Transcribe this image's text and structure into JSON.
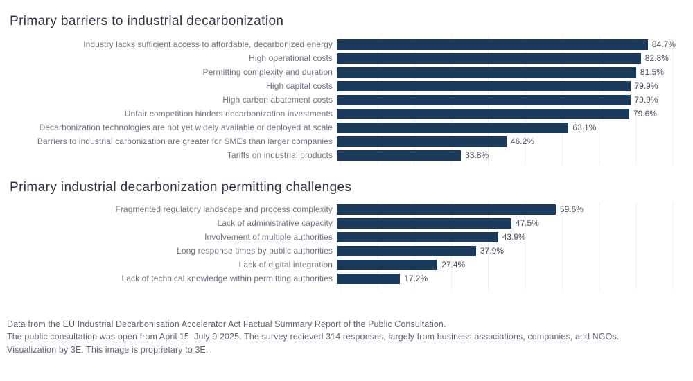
{
  "page": {
    "background": "#ffffff",
    "bar_color": "#1b3a5c",
    "gridline_color": "#ececf0",
    "title_color": "#2e3444",
    "label_color": "#6b7280",
    "value_color": "#454d5c",
    "footer_color": "#5e6573"
  },
  "chart_data": [
    {
      "type": "bar",
      "orientation": "horizontal",
      "title": "Primary barriers to industrial decarbonization",
      "categories": [
        "Industry lacks sufficient access to affordable, decarbonized energy",
        "High operational costs",
        "Permitting complexity and duration",
        "High capital costs",
        "High carbon abatement costs",
        "Unfair competition hinders decarbonization investments",
        "Decarbonization technologies are not yet widely available or deployed at scale",
        "Barriers to industrial carbonization are greater for SMEs than larger companies",
        "Tariffs on industrial products"
      ],
      "values": [
        84.7,
        82.8,
        81.5,
        79.9,
        79.9,
        79.6,
        63.1,
        46.2,
        33.8
      ],
      "value_suffix": "%",
      "xlim": [
        0,
        93.5
      ],
      "gridline_interval": 10,
      "grid": true,
      "data_labels": true,
      "legend": false,
      "xlabel": "",
      "ylabel": ""
    },
    {
      "type": "bar",
      "orientation": "horizontal",
      "title": "Primary industrial decarbonization permitting challenges",
      "categories": [
        "Fragmented regulatory landscape and process complexity",
        "Lack of administrative capacity",
        "Involvement of multiple authorities",
        "Long response times by public authorities",
        "Lack of digital integration",
        "Lack of technical knowledge within permitting authorities"
      ],
      "values": [
        59.6,
        47.5,
        43.9,
        37.9,
        27.4,
        17.2
      ],
      "value_suffix": "%",
      "xlim": [
        0,
        93.5
      ],
      "gridline_interval": 10,
      "grid": true,
      "data_labels": true,
      "legend": false,
      "xlabel": "",
      "ylabel": ""
    }
  ],
  "footer": {
    "line1": "Data from the EU Industrial Decarbonisation Accelerator Act Factual Summary Report of the Public Consultation.",
    "line2": "The public consultation was open from April 15–July 9 2025. The survey recieved 314 responses, largely from business associations, companies, and NGOs.",
    "line3": "Visualization by 3E. This image is proprietary to 3E."
  }
}
